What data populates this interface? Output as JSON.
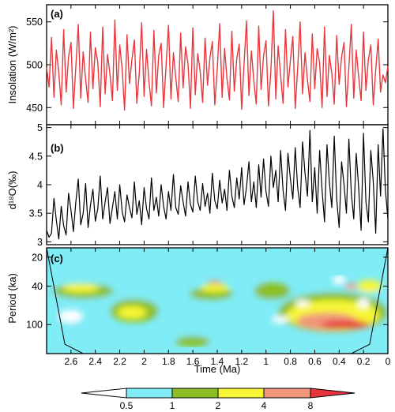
{
  "chart_data": [
    {
      "panel": "(a)",
      "type": "line",
      "ylabel": "Insolation (W/m²)",
      "ylim": [
        430,
        570
      ],
      "yticks": [
        "450",
        "500",
        "550"
      ],
      "ytick_values": [
        450,
        500,
        550
      ],
      "xlim": [
        2.8,
        0
      ],
      "series": [
        {
          "color": "#e8383d",
          "x": [
            2.8,
            2.78,
            2.76,
            2.74,
            2.72,
            2.7,
            2.68,
            2.66,
            2.64,
            2.62,
            2.6,
            2.58,
            2.56,
            2.54,
            2.52,
            2.5,
            2.48,
            2.46,
            2.44,
            2.42,
            2.4,
            2.38,
            2.36,
            2.34,
            2.32,
            2.3,
            2.28,
            2.26,
            2.24,
            2.22,
            2.2,
            2.18,
            2.16,
            2.14,
            2.12,
            2.1,
            2.08,
            2.06,
            2.04,
            2.02,
            2.0,
            1.98,
            1.96,
            1.94,
            1.92,
            1.9,
            1.88,
            1.86,
            1.84,
            1.82,
            1.8,
            1.78,
            1.76,
            1.74,
            1.72,
            1.7,
            1.68,
            1.66,
            1.64,
            1.62,
            1.6,
            1.58,
            1.56,
            1.54,
            1.52,
            1.5,
            1.48,
            1.46,
            1.44,
            1.42,
            1.4,
            1.38,
            1.36,
            1.34,
            1.32,
            1.3,
            1.28,
            1.26,
            1.24,
            1.22,
            1.2,
            1.18,
            1.16,
            1.14,
            1.12,
            1.1,
            1.08,
            1.06,
            1.04,
            1.02,
            1.0,
            0.98,
            0.96,
            0.94,
            0.92,
            0.9,
            0.88,
            0.86,
            0.84,
            0.82,
            0.8,
            0.78,
            0.76,
            0.74,
            0.72,
            0.7,
            0.68,
            0.66,
            0.64,
            0.62,
            0.6,
            0.58,
            0.56,
            0.54,
            0.52,
            0.5,
            0.48,
            0.46,
            0.44,
            0.42,
            0.4,
            0.38,
            0.36,
            0.34,
            0.32,
            0.3,
            0.28,
            0.26,
            0.24,
            0.22,
            0.2,
            0.18,
            0.16,
            0.14,
            0.12,
            0.1,
            0.08,
            0.06,
            0.04,
            0.02,
            0.0
          ],
          "values": [
            497,
            474,
            532,
            462,
            517,
            491,
            453,
            541,
            468,
            509,
            526,
            449,
            498,
            547,
            461,
            515,
            483,
            456,
            538,
            472,
            520,
            503,
            451,
            544,
            466,
            512,
            489,
            458,
            552,
            470,
            523,
            494,
            447,
            535,
            478,
            506,
            529,
            455,
            490,
            549,
            463,
            518,
            480,
            452,
            540,
            467,
            511,
            525,
            450,
            499,
            546,
            460,
            514,
            485,
            457,
            537,
            473,
            521,
            501,
            449,
            543,
            465,
            513,
            492,
            456,
            531,
            476,
            508,
            527,
            453,
            495,
            548,
            462,
            519,
            484,
            459,
            539,
            469,
            507,
            524,
            448,
            500,
            551,
            464,
            516,
            481,
            454,
            545,
            471,
            510,
            528,
            452,
            493,
            563,
            460,
            522,
            487,
            455,
            541,
            474,
            505,
            533,
            449,
            496,
            550,
            466,
            514,
            482,
            457,
            536,
            472,
            519,
            502,
            450,
            544,
            463,
            511,
            490,
            454,
            534,
            477,
            509,
            526,
            451,
            497,
            547,
            461,
            517,
            486,
            458,
            538,
            470,
            506,
            523,
            453,
            494,
            530,
            468,
            488,
            479,
            498
          ]
        }
      ]
    },
    {
      "panel": "(b)",
      "type": "line",
      "ylabel": "d¹⁸O(‰)",
      "ylim": [
        2.95,
        5.05
      ],
      "yticks": [
        "3",
        "3.5",
        "4",
        "4.5",
        "5"
      ],
      "ytick_values": [
        3,
        3.5,
        4,
        4.5,
        5
      ],
      "xlim": [
        2.8,
        0
      ],
      "series": [
        {
          "color": "#000000",
          "x": [
            2.8,
            2.78,
            2.76,
            2.74,
            2.72,
            2.7,
            2.68,
            2.66,
            2.64,
            2.62,
            2.6,
            2.58,
            2.56,
            2.54,
            2.52,
            2.5,
            2.48,
            2.46,
            2.44,
            2.42,
            2.4,
            2.38,
            2.36,
            2.34,
            2.32,
            2.3,
            2.28,
            2.26,
            2.24,
            2.22,
            2.2,
            2.18,
            2.16,
            2.14,
            2.12,
            2.1,
            2.08,
            2.06,
            2.04,
            2.02,
            2.0,
            1.98,
            1.96,
            1.94,
            1.92,
            1.9,
            1.88,
            1.86,
            1.84,
            1.82,
            1.8,
            1.78,
            1.76,
            1.74,
            1.72,
            1.7,
            1.68,
            1.66,
            1.64,
            1.62,
            1.6,
            1.58,
            1.56,
            1.54,
            1.52,
            1.5,
            1.48,
            1.46,
            1.44,
            1.42,
            1.4,
            1.38,
            1.36,
            1.34,
            1.32,
            1.3,
            1.28,
            1.26,
            1.24,
            1.22,
            1.2,
            1.18,
            1.16,
            1.14,
            1.12,
            1.1,
            1.08,
            1.06,
            1.04,
            1.02,
            1.0,
            0.98,
            0.96,
            0.94,
            0.92,
            0.9,
            0.88,
            0.86,
            0.84,
            0.82,
            0.8,
            0.78,
            0.76,
            0.74,
            0.72,
            0.7,
            0.68,
            0.66,
            0.64,
            0.62,
            0.6,
            0.58,
            0.56,
            0.54,
            0.52,
            0.5,
            0.48,
            0.46,
            0.44,
            0.42,
            0.4,
            0.38,
            0.36,
            0.34,
            0.32,
            0.3,
            0.28,
            0.26,
            0.24,
            0.22,
            0.2,
            0.18,
            0.16,
            0.14,
            0.12,
            0.1,
            0.08,
            0.06,
            0.04,
            0.02,
            0.0
          ],
          "values": [
            3.2,
            3.08,
            3.15,
            3.76,
            3.38,
            3.05,
            3.62,
            3.28,
            3.12,
            3.85,
            3.55,
            3.18,
            3.7,
            4.1,
            3.3,
            3.5,
            4.02,
            3.25,
            3.64,
            3.92,
            3.36,
            3.58,
            4.15,
            3.4,
            3.7,
            3.95,
            3.32,
            3.6,
            3.88,
            3.4,
            4.0,
            3.52,
            3.35,
            3.82,
            3.6,
            3.42,
            4.05,
            3.48,
            3.72,
            3.3,
            3.95,
            3.58,
            3.4,
            4.12,
            3.55,
            3.78,
            3.45,
            4.0,
            3.62,
            3.4,
            3.88,
            3.55,
            4.18,
            3.6,
            3.48,
            3.98,
            3.7,
            3.45,
            4.05,
            3.65,
            3.52,
            4.15,
            3.7,
            3.55,
            4.02,
            3.62,
            3.85,
            3.5,
            4.2,
            3.72,
            3.58,
            4.08,
            3.68,
            3.92,
            3.55,
            4.25,
            3.8,
            3.6,
            4.12,
            3.75,
            4.3,
            3.65,
            3.95,
            4.4,
            3.7,
            4.05,
            3.6,
            4.35,
            3.78,
            4.45,
            3.88,
            3.62,
            4.5,
            3.95,
            4.25,
            3.7,
            4.6,
            3.9,
            3.55,
            4.55,
            4.1,
            3.75,
            4.65,
            3.95,
            3.6,
            4.75,
            4.2,
            3.8,
            4.95,
            3.7,
            4.3,
            3.5,
            4.6,
            3.9,
            3.35,
            4.7,
            4.05,
            3.6,
            4.85,
            3.75,
            3.25,
            4.4,
            4.0,
            3.5,
            4.8,
            3.85,
            3.4,
            4.55,
            3.95,
            3.2,
            4.9,
            3.7,
            3.35,
            4.6,
            4.05,
            3.15,
            4.7,
            3.8,
            4.98,
            3.9,
            3.4
          ]
        }
      ]
    },
    {
      "panel": "(c)",
      "type": "heatmap",
      "ylabel": "Period (ka)",
      "yscale": "log",
      "ylim": [
        200,
        16
      ],
      "yticks": [
        "20",
        "40",
        "100"
      ],
      "ytick_values": [
        20,
        40,
        100
      ],
      "xlabel": "Time (Ma)",
      "xlim": [
        2.8,
        0
      ],
      "xticks": [
        "2.6",
        "2.4",
        "2.2",
        "2",
        "1.8",
        "1.6",
        "1.4",
        "1.2",
        "1",
        "0.8",
        "0.6",
        "0.4",
        "0.2",
        "0"
      ],
      "xtick_values": [
        2.6,
        2.4,
        2.2,
        2.0,
        1.8,
        1.6,
        1.4,
        1.2,
        1.0,
        0.8,
        0.6,
        0.4,
        0.2,
        0.0
      ],
      "cone_of_influence": {
        "x": [
          2.8,
          2.65,
          2.5,
          2.3,
          2.0,
          1.7,
          1.4,
          1.1,
          0.8,
          0.5,
          0.3,
          0.15,
          0.0
        ],
        "period": [
          16,
          160,
          200,
          200,
          200,
          200,
          200,
          200,
          200,
          200,
          200,
          160,
          16
        ]
      },
      "contour_levels": [
        "0.5",
        "1",
        "2",
        "4",
        "8"
      ],
      "level_values": [
        0.5,
        1,
        2,
        4,
        8
      ],
      "contour_colors": [
        "#ffffff",
        "#7fecf6",
        "#8cbf26",
        "#f6f635",
        "#f2967c",
        "#e8343c"
      ],
      "regions": [
        {
          "level": 1,
          "x": 2.5,
          "period": 45,
          "rx": 0.34,
          "ry": 0.26
        },
        {
          "level": 1,
          "x": 2.05,
          "period": 60,
          "rx": 0.3,
          "ry": 0.4
        },
        {
          "level": 1,
          "x": 1.45,
          "period": 48,
          "rx": 0.26,
          "ry": 0.22
        },
        {
          "level": 1,
          "x": 1.45,
          "period": 125,
          "rx": 0.3,
          "ry": 0.28
        },
        {
          "level": 1,
          "x": 1.65,
          "period": 80,
          "rx": 0.18,
          "ry": 0.4
        },
        {
          "level": 1,
          "x": 0.5,
          "period": 70,
          "rx": 0.55,
          "ry": 0.65
        },
        {
          "level": 1,
          "x": 1.05,
          "period": 50,
          "rx": 0.14,
          "ry": 0.3
        },
        {
          "level": 1,
          "x": 2.7,
          "period": 95,
          "rx": 0.15,
          "ry": 0.3
        },
        {
          "level": 2,
          "x": 2.5,
          "period": 45,
          "rx": 0.25,
          "ry": 0.18
        },
        {
          "level": 2,
          "x": 2.08,
          "period": 72,
          "rx": 0.2,
          "ry": 0.28
        },
        {
          "level": 2,
          "x": 1.45,
          "period": 48,
          "rx": 0.18,
          "ry": 0.15
        },
        {
          "level": 2,
          "x": 1.6,
          "period": 150,
          "rx": 0.14,
          "ry": 0.13
        },
        {
          "level": 2,
          "x": 0.45,
          "period": 75,
          "rx": 0.45,
          "ry": 0.48
        },
        {
          "level": 2,
          "x": 0.95,
          "period": 45,
          "rx": 0.15,
          "ry": 0.2
        },
        {
          "level": 3,
          "x": 2.52,
          "period": 42,
          "rx": 0.15,
          "ry": 0.1
        },
        {
          "level": 3,
          "x": 2.1,
          "period": 75,
          "rx": 0.12,
          "ry": 0.15
        },
        {
          "level": 3,
          "x": 1.42,
          "period": 42,
          "rx": 0.12,
          "ry": 0.09
        },
        {
          "level": 3,
          "x": 0.45,
          "period": 80,
          "rx": 0.38,
          "ry": 0.36
        },
        {
          "level": 3,
          "x": 0.15,
          "period": 40,
          "rx": 0.1,
          "ry": 0.15
        },
        {
          "level": 4,
          "x": 1.42,
          "period": 37,
          "rx": 0.06,
          "ry": 0.05
        },
        {
          "level": 4,
          "x": 0.5,
          "period": 92,
          "rx": 0.25,
          "ry": 0.2
        },
        {
          "level": 4,
          "x": 0.3,
          "period": 40,
          "rx": 0.05,
          "ry": 0.07
        },
        {
          "level": 5,
          "x": 0.35,
          "period": 100,
          "rx": 0.2,
          "ry": 0.1
        },
        {
          "level": 0,
          "x": 0.7,
          "period": 60,
          "rx": 0.06,
          "ry": 0.08
        },
        {
          "level": 0,
          "x": 0.88,
          "period": 88,
          "rx": 0.07,
          "ry": 0.08
        },
        {
          "level": 0,
          "x": 0.2,
          "period": 60,
          "rx": 0.05,
          "ry": 0.12
        },
        {
          "level": 0,
          "x": 0.4,
          "period": 34,
          "rx": 0.05,
          "ry": 0.1
        },
        {
          "level": 0,
          "x": 2.6,
          "period": 82,
          "rx": 0.1,
          "ry": 0.15
        }
      ]
    }
  ]
}
